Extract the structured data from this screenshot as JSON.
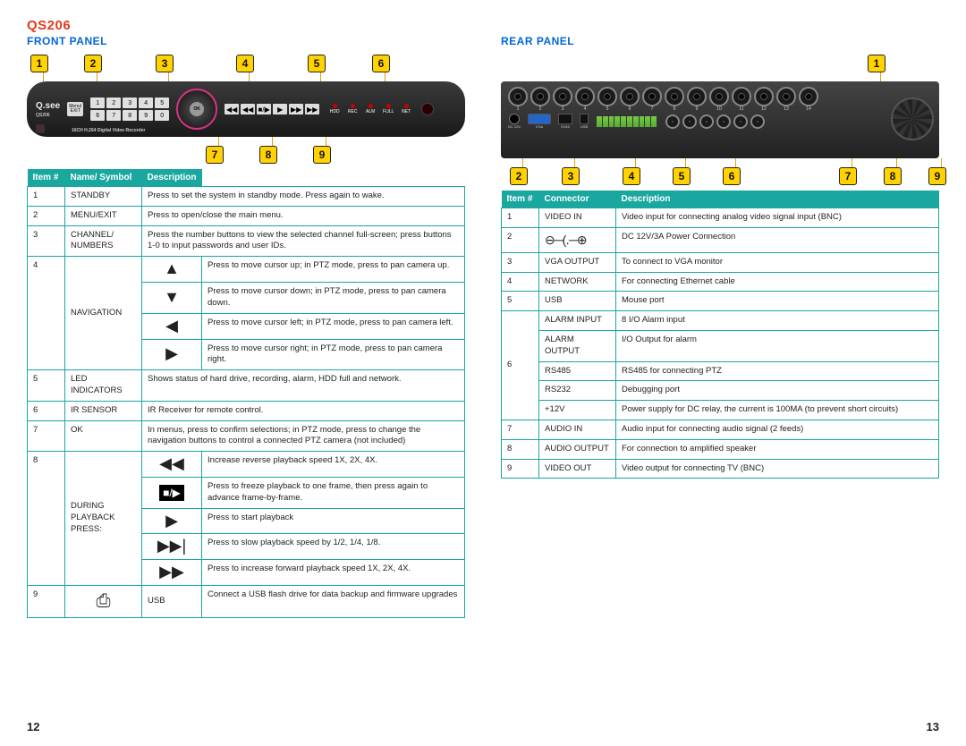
{
  "model": "QS206",
  "front": {
    "title": "FRONT PANEL",
    "device_subtitle": "16CH H.264 Digital Video Recorder",
    "logo": "Q.see",
    "menu_exit_label": "Menu/\nEXIT",
    "ok_label": "OK",
    "num_buttons": [
      "1",
      "2",
      "3",
      "4",
      "5",
      "6",
      "7",
      "8",
      "9",
      "0"
    ],
    "playback_btns": [
      "◀◀",
      "◀◀",
      "■/▶",
      "▶",
      "▶▶",
      "▶▶"
    ],
    "led_labels": [
      "HDD",
      "REC",
      "ALM",
      "FULL",
      "NET"
    ],
    "callouts_top": [
      "1",
      "2",
      "3",
      "4",
      "5",
      "6"
    ],
    "callouts_bottom": [
      "7",
      "8",
      "9"
    ],
    "table": {
      "headers": [
        "Item #",
        "Name/ Symbol",
        "Description"
      ],
      "rows": [
        {
          "item": "1",
          "name": "STANDBY",
          "desc": "Press to set the system in standby mode. Press again to wake."
        },
        {
          "item": "2",
          "name": "MENU/EXIT",
          "desc": "Press to open/close the main menu."
        },
        {
          "item": "3",
          "name": "CHANNEL/ NUMBERS",
          "desc": "Press the number buttons to view the selected channel full-screen; press buttons 1-0 to input passwords and user IDs."
        },
        {
          "item": "4",
          "name": "NAVIGATION",
          "nav": [
            {
              "sym": "▲",
              "desc": "Press to move cursor up; in PTZ mode, press to pan camera up."
            },
            {
              "sym": "▼",
              "desc": "Press to move cursor down; in PTZ mode, press to pan camera down."
            },
            {
              "sym": "◀",
              "desc": "Press to move cursor left; in PTZ mode, press to pan camera left."
            },
            {
              "sym": "▶",
              "desc": "Press to move cursor right; in PTZ mode, press to pan camera right."
            }
          ]
        },
        {
          "item": "5",
          "name": "LED INDICATORS",
          "desc": "Shows status of hard drive, recording, alarm, HDD full and network."
        },
        {
          "item": "6",
          "name": "IR SENSOR",
          "desc": "IR Receiver for remote control."
        },
        {
          "item": "7",
          "name": "OK",
          "desc": "In menus, press to confirm selections; in PTZ mode, press to change the navigation buttons to control a connected PTZ camera (not included)"
        },
        {
          "item": "8",
          "name": "DURING PLAYBACK PRESS:",
          "pb": [
            {
              "sym": "◀◀",
              "desc": "Increase reverse playback speed 1X, 2X, 4X."
            },
            {
              "sym": "■/▶",
              "box": true,
              "desc": "Press to freeze playback to one frame, then press again to advance frame-by-frame."
            },
            {
              "sym": "▶",
              "desc": "Press to start playback"
            },
            {
              "sym": "▶▶|",
              "desc": "Press to slow playback speed by 1/2, 1/4, 1/8."
            },
            {
              "sym": "▶▶",
              "desc": "Press to increase forward playback speed 1X, 2X, 4X."
            }
          ]
        },
        {
          "item": "9",
          "name": "USB",
          "usb": true,
          "desc": "Connect a USB flash drive for data backup and firmware upgrades"
        }
      ]
    }
  },
  "rear": {
    "title": "REAR PANEL",
    "callouts_top": [
      "1"
    ],
    "callouts_bottom": [
      "2",
      "3",
      "4",
      "5",
      "6",
      "7",
      "8",
      "9"
    ],
    "bnc_top_labels": [
      "1",
      "2",
      "3",
      "4",
      "5",
      "6",
      "7",
      "8",
      "9",
      "10",
      "11",
      "12",
      "13",
      "14"
    ],
    "bnc_bot_labels": [
      "15",
      "16"
    ],
    "port_labels": [
      "DC 12V",
      "VGA",
      "RJ45",
      "USB"
    ],
    "audio_labels": [
      "AUDIO IN",
      "AUDIO OUT",
      "CVBS OUT"
    ],
    "table": {
      "headers": [
        "Item #",
        "Connector",
        "Description"
      ],
      "rows": [
        {
          "item": "1",
          "name": "VIDEO IN",
          "desc": "Video input for connecting analog video signal input (BNC)"
        },
        {
          "item": "2",
          "name": "⊖─(․─⊕",
          "sym": true,
          "desc": "DC 12V/3A Power Connection"
        },
        {
          "item": "3",
          "name": "VGA OUTPUT",
          "desc": "To connect to VGA monitor"
        },
        {
          "item": "4",
          "name": "NETWORK",
          "desc": "For connecting Ethernet cable"
        },
        {
          "item": "5",
          "name": "USB",
          "desc": "Mouse port"
        },
        {
          "item": "",
          "name": "ALARM INPUT",
          "desc": "8 I/O Alarm input",
          "grouped": true
        },
        {
          "item": "",
          "name": "ALARM OUTPUT",
          "desc": "I/O Output for alarm",
          "grouped": true
        },
        {
          "item": "6",
          "name": "RS485",
          "desc": "RS485 for connecting PTZ",
          "grouped": true
        },
        {
          "item": "",
          "name": "RS232",
          "desc": "Debugging port",
          "grouped": true
        },
        {
          "item": "",
          "name": "+12V",
          "desc": "Power supply for DC relay, the current is 100MA (to prevent short circuits)",
          "grouped": true
        },
        {
          "item": "7",
          "name": "AUDIO IN",
          "desc": "Audio input for connecting audio signal (2 feeds)"
        },
        {
          "item": "8",
          "name": "AUDIO OUTPUT",
          "desc": "For connection to amplified speaker"
        },
        {
          "item": "9",
          "name": "VIDEO OUT",
          "desc": "Video output for connecting TV (BNC)"
        }
      ]
    }
  },
  "page_left": "12",
  "page_right": "13",
  "colors": {
    "model": "#e03a1a",
    "heading": "#0066d6",
    "table_header": "#1aa7a0",
    "callout_bg": "#ffd200"
  }
}
